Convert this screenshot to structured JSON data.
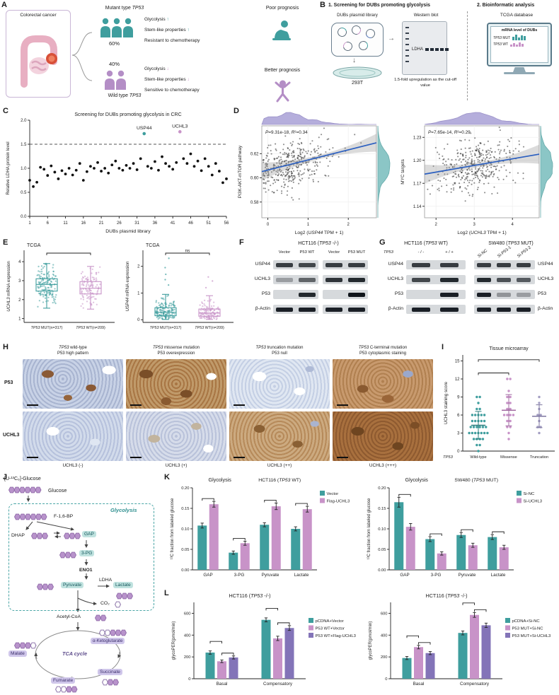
{
  "colors": {
    "teal": "#3f9e9e",
    "pink": "#c893c8",
    "purple": "#8374b8",
    "gray": "#a39ec2",
    "purple_density": "#a9a0d6",
    "teal_density": "#7fc0c0"
  },
  "panelA": {
    "label": "A",
    "organ_title": "Colorectal cancer",
    "mutant_title": "Mutant type *TP53*",
    "mutant_pct": "60%",
    "mutant_items": [
      {
        "text": "Glycolysis",
        "arrow": "↑"
      },
      {
        "text": "Stem-like properties",
        "arrow": "↑"
      },
      {
        "text": "Resistant to chemotherapy",
        "arrow": ""
      }
    ],
    "mutant_outcome": "Poor prognosis",
    "wild_title": "Wild type *TP53*",
    "wild_pct": "40%",
    "wild_items": [
      {
        "text": "Glycolysis",
        "arrow": "↓"
      },
      {
        "text": "Stem-like properties",
        "arrow": "↓"
      },
      {
        "text": "Sensitive to chemotherapy",
        "arrow": ""
      }
    ],
    "wild_outcome": "Better prognosis"
  },
  "panelB": {
    "label": "B",
    "step1": "1. Screening for DUBs promoting glycolysis",
    "step2": "2. Bioinformatic analysis",
    "library_label": "DUBs plasmid library",
    "wb_label": "Western blot",
    "ldha": "LDHA",
    "cell_line": "293T",
    "cutoff": "1.5-fold upregulation as the cut-off value",
    "tcga": "TCGA database",
    "screen_title": "mRNA level of DUBs",
    "mut_label": "*TP53* MUT",
    "wt_label": "*TP53* WT"
  },
  "panelC": {
    "label": "C"
  },
  "panelD": {
    "label": "D"
  },
  "panelE": {
    "label": "E"
  },
  "panelF": {
    "label": "F",
    "title": "HCT116 (*TP53* -/-)",
    "lanes": [
      "Vector",
      "P53 WT",
      "Vector",
      "P53 MUT"
    ],
    "rows": [
      {
        "name": "USP44",
        "bands": [
          [
            0.8,
            0.75
          ],
          [
            0.8,
            0.8
          ]
        ]
      },
      {
        "name": "UCHL3",
        "bands": [
          [
            0.3,
            0.6
          ],
          [
            0.85,
            0.9
          ]
        ]
      },
      {
        "name": "P53",
        "bands": [
          [
            0,
            0.9
          ],
          [
            0,
            1
          ]
        ]
      },
      {
        "name": "β-Actin",
        "bands": [
          [
            0.95,
            0.95
          ],
          [
            0.95,
            0.95
          ]
        ]
      }
    ]
  },
  "panelG": {
    "label": "G",
    "left": {
      "title": "HCT116 (*TP53* WT)",
      "header_gene": "TP53",
      "lanes": [
        "- / -",
        "+ / +"
      ],
      "rows": [
        {
          "name": "USP44",
          "bands": [
            [
              0.8,
              0.8
            ]
          ]
        },
        {
          "name": "UCHL3",
          "bands": [
            [
              0.75,
              0.9
            ]
          ]
        },
        {
          "name": "P53",
          "bands": [
            [
              0.05,
              0.95
            ]
          ]
        },
        {
          "name": "β-Actin",
          "bands": [
            [
              0.95,
              0.95
            ]
          ]
        }
      ]
    },
    "right": {
      "title": "SW480 (*TP53* MUT)",
      "lanes": [
        "Si-NC",
        "Si-P53-1",
        "Si-P53-2"
      ],
      "rows": [
        {
          "name": "USP44",
          "bands": [
            [
              0.8,
              0.8,
              0.8
            ]
          ]
        },
        {
          "name": "UCHL3",
          "bands": [
            [
              0.9,
              0.7,
              0.65
            ]
          ]
        },
        {
          "name": "P53",
          "bands": [
            [
              0.95,
              0.35,
              0.3
            ]
          ]
        },
        {
          "name": "β-Actin",
          "bands": [
            [
              0.95,
              0.95,
              0.95
            ]
          ]
        }
      ]
    }
  },
  "panelH": {
    "label": "H",
    "columns": [
      {
        "line1": "*TP53* wild-type",
        "line2": "P53 high pattern",
        "bottom": "UCHL3 (-)"
      },
      {
        "line1": "*TP53* missense mutation",
        "line2": "P53 overexpression",
        "bottom": "UCHL3 (+)"
      },
      {
        "line1": "*TP53* truncation mutation",
        "line2": "P53 null",
        "bottom": "UCHL3 (++)"
      },
      {
        "line1": "*TP53* C-terminal mutation",
        "line2": "P53 cytoplasmic staining",
        "bottom": "UCHL3 (+++)"
      }
    ],
    "row_labels": [
      "P53",
      "UCHL3"
    ]
  },
  "panelI": {
    "label": "I"
  },
  "panelJ": {
    "label": "J",
    "tracer": "[U-¹³C₆]-Glucose",
    "nodes": {
      "glucose": "Glucose",
      "f16bp": "F-1,6-BP",
      "dhap": "DHAP",
      "gap": "GAP",
      "pg3": "3-PG",
      "eno1": "ENO1",
      "pyruvate": "Pyruvate",
      "ldha": "LDHA",
      "lactate": "Lactate",
      "co2": "CO₂",
      "acetylcoa": "Acetyl-CoA",
      "akg": "α-Ketoglutarate",
      "succinate": "Succinate",
      "fumarate": "Fumarate",
      "malate": "Malate",
      "tca": "TCA cycle",
      "glycolysis": "Glycolysis"
    },
    "chains": {
      "glucose": "ffffff",
      "f16bp": "ffffff",
      "dhap": "fff",
      "gap": "fff",
      "pg3": "fff",
      "pyruvate": "fff",
      "lactate": "fff",
      "co2": "o",
      "acetyl": "ff",
      "akg": "oofff",
      "succinate": "off",
      "fumarate": "ooff",
      "malate": "fffo"
    }
  },
  "panelK": {
    "label": "K"
  },
  "panelL": {
    "label": "L"
  },
  "chart_data": [
    {
      "id": "chart-c",
      "type": "scatter",
      "title": "Screening for DUBs promoting glycolysis in CRC",
      "xlabel": "DUBs plasmid library",
      "ylabel": "Relative LDHA protein level",
      "xticks": [
        1,
        6,
        11,
        16,
        21,
        26,
        31,
        36,
        41,
        46,
        51,
        56
      ],
      "ylim": [
        0,
        2
      ],
      "yticks": [
        0,
        0.5,
        1,
        1.5,
        2
      ],
      "ydec": 1,
      "cutoff": 1.5,
      "values": [
        0.75,
        0.62,
        0.71,
        1.02,
        0.98,
        0.85,
        1.05,
        0.92,
        0.78,
        0.95,
        0.88,
        1.0,
        0.86,
        0.96,
        1.1,
        0.75,
        0.93,
        1.04,
        1.0,
        1.12,
        0.94,
        1.0,
        0.9,
        1.07,
        1.15,
        1.0,
        0.96,
        1.06,
        1.0,
        1.1,
        0.97,
        1.2,
        1.72,
        1.04,
        1.0,
        1.14,
        0.96,
        1.24,
        1.1,
        1.04,
        0.98,
        1.12,
        1.76,
        1.2,
        1.1,
        1.3,
        1.04,
        1.15,
        0.95,
        1.2,
        1.04,
        0.86,
        1.1,
        0.94,
        0.7,
        0.78
      ],
      "highlights": [
        {
          "index": 33,
          "name": "USP44",
          "color": "teal"
        },
        {
          "index": 43,
          "name": "UCHL3",
          "color": "pink"
        }
      ]
    },
    {
      "id": "chart-d1",
      "type": "scatter-density",
      "annotation": "*P*=9.31e-18, *R*²=0.34",
      "ylabel": "PI3K-AKT-mTOR pathway",
      "xlabel": "Log2 (*USP44* TPM + 1)",
      "xlim": [
        -0.15,
        2.7
      ],
      "xticks": [
        0,
        1,
        2
      ],
      "xdec": 0,
      "ylim": [
        1.134,
        1.245
      ],
      "ylim_note": "",
      "ylim2": [
        0.567,
        0.643
      ],
      "yticks": [
        0.58,
        0.6,
        0.62
      ],
      "ydec": 2,
      "n": 380,
      "seed": 7,
      "x_mean": 0.55,
      "x_sd": 0.5,
      "trend": {
        "x0": -0.15,
        "y0": 0.6052,
        "x1": 2.7,
        "y1": 0.629
      },
      "noise": 0.0095
    },
    {
      "id": "chart-d2",
      "type": "scatter-density",
      "annotation": "*P*=7.65e-14, *R*²=0.29",
      "ylabel": "MYC targets",
      "xlabel": "Log2 (*UCHL3* TPM + 1)",
      "xlim": [
        1.7,
        4.7
      ],
      "xticks": [
        2,
        3,
        4
      ],
      "xdec": 0,
      "ylim2": [
        1.125,
        1.245
      ],
      "yticks": [
        1.14,
        1.17,
        1.2,
        1.23
      ],
      "ydec": 2,
      "n": 380,
      "seed": 13,
      "x_mean": 3.0,
      "x_sd": 0.5,
      "trend": {
        "x0": 1.7,
        "y0": 1.182,
        "x1": 4.7,
        "y1": 1.208
      },
      "noise": 0.016
    },
    {
      "id": "chart-e1",
      "type": "box",
      "title": "TCGA",
      "ylabel": "*UCHL3* mRNA expression",
      "ylim": [
        0.8,
        4.6
      ],
      "yticks": [
        1,
        2,
        3,
        4
      ],
      "ydec": 0,
      "sig": "**",
      "groups": [
        {
          "label": "*TP53* MUT(n=317)",
          "color": "teal",
          "ec": "#2a7d7d",
          "n": 150,
          "seed": 21,
          "med": 2.8,
          "q1": 2.45,
          "q3": 3.1,
          "lo": 1.55,
          "hi": 3.9,
          "outliers": []
        },
        {
          "label": "*TP53* WT(n=209)",
          "color": "pink",
          "ec": "#a06aa0",
          "n": 110,
          "seed": 22,
          "med": 2.6,
          "q1": 2.3,
          "q3": 2.95,
          "lo": 1.5,
          "hi": 3.75,
          "outliers": []
        }
      ]
    },
    {
      "id": "chart-e2",
      "type": "box",
      "title": "TCGA",
      "ylabel": "*USP44* mRNA expression",
      "ylim": [
        -0.1,
        2.6
      ],
      "yticks": [
        0,
        1,
        2
      ],
      "ydec": 0,
      "sig": "ns",
      "groups": [
        {
          "label": "*TP53* MUT(n=317)",
          "color": "teal",
          "ec": "#2a7d7d",
          "n": 150,
          "seed": 31,
          "med": 0.28,
          "q1": 0.15,
          "q3": 0.45,
          "lo": 0.01,
          "hi": 0.95,
          "outliers": [
            1.3,
            1.5,
            1.7,
            1.95,
            2.3
          ]
        },
        {
          "label": "*TP53* WT(n=209)",
          "color": "pink",
          "ec": "#a06aa0",
          "n": 110,
          "seed": 32,
          "med": 0.25,
          "q1": 0.13,
          "q3": 0.4,
          "lo": 0.01,
          "hi": 0.9,
          "outliers": [
            1.2,
            1.45,
            1.6
          ]
        }
      ]
    },
    {
      "id": "chart-i",
      "type": "dot",
      "title": "Tissue microarray",
      "ylabel": "UCHL3 staining score",
      "xlabel_gene": "*TP53*",
      "ylim": [
        0,
        16
      ],
      "yticks": [
        0,
        3,
        6,
        9,
        12,
        15
      ],
      "ydec": 0,
      "groups": [
        {
          "label": "Wild-type",
          "color": "teal",
          "ec": "#2a7d7d",
          "values": [
            0,
            1,
            1,
            2,
            2,
            2,
            2,
            3,
            3,
            3,
            3,
            3,
            3,
            3,
            4,
            4,
            4,
            4,
            4,
            4,
            5,
            5,
            5,
            5,
            5,
            6,
            6,
            6,
            6,
            6,
            7,
            7,
            8,
            9,
            9
          ],
          "mean": 4.3,
          "sd_lo": 2.0,
          "sd_hi": 6.6
        },
        {
          "label": "Missense",
          "color": "pink",
          "ec": "#a06aa0",
          "values": [
            2,
            3,
            4,
            4,
            5,
            5,
            6,
            6,
            6,
            6,
            7,
            7,
            8,
            8,
            9,
            9,
            10,
            12,
            12
          ],
          "mean": 6.8,
          "sd_lo": 4.2,
          "sd_hi": 9.4
        },
        {
          "label": "Truncation",
          "color": "gray",
          "ec": "#7d76a0",
          "values": [
            3,
            4,
            4,
            5,
            6,
            6,
            7,
            8,
            9
          ],
          "mean": 5.8,
          "sd_lo": 3.9,
          "sd_hi": 7.7
        }
      ],
      "sig": [
        {
          "a": 0,
          "b": 1,
          "label": "**",
          "y": 13
        },
        {
          "a": 0,
          "b": 2,
          "label": "*",
          "y": 15.2
        }
      ]
    },
    {
      "id": "chart-k1",
      "type": "bar",
      "title": "Glycolysis",
      "subtitle": "HCT116 (*TP53* WT)",
      "ylabel": "¹³C fraction from labeled glucose",
      "ylim": [
        0,
        0.2
      ],
      "yticks": [
        0,
        0.05,
        0.1,
        0.15,
        0.2
      ],
      "ydec": 2,
      "categories": [
        "GAP",
        "3-PG",
        "Pyruvate",
        "Lactate"
      ],
      "series": [
        {
          "name": "Vector",
          "color": "teal",
          "values": [
            0.108,
            0.042,
            0.11,
            0.1
          ],
          "errors": [
            0.006,
            0.004,
            0.005,
            0.005
          ]
        },
        {
          "name": "Flag-UCHL3",
          "color": "pink",
          "values": [
            0.16,
            0.065,
            0.155,
            0.148
          ],
          "errors": [
            0.007,
            0.005,
            0.008,
            0.007
          ]
        }
      ],
      "sig": [
        {
          "cat": 0,
          "a": 0,
          "b": 1,
          "label": "***"
        },
        {
          "cat": 1,
          "a": 0,
          "b": 1,
          "label": "**"
        },
        {
          "cat": 2,
          "a": 0,
          "b": 1,
          "label": "***"
        },
        {
          "cat": 3,
          "a": 0,
          "b": 1,
          "label": "***"
        }
      ]
    },
    {
      "id": "chart-k2",
      "type": "bar",
      "title": "Glycolysis",
      "subtitle": "SW480 (*TP53* MUT)",
      "ylabel": "¹³C fraction from labeled glucose",
      "ylim": [
        0,
        0.2
      ],
      "yticks": [
        0,
        0.05,
        0.1,
        0.15,
        0.2
      ],
      "ydec": 2,
      "categories": [
        "GAP",
        "3-PG",
        "Pyruvate",
        "Lactate"
      ],
      "series": [
        {
          "name": "Si-NC",
          "color": "teal",
          "values": [
            0.165,
            0.075,
            0.085,
            0.08
          ],
          "errors": [
            0.012,
            0.006,
            0.006,
            0.006
          ]
        },
        {
          "name": "Si-UCHL3",
          "color": "pink",
          "values": [
            0.105,
            0.04,
            0.06,
            0.055
          ],
          "errors": [
            0.008,
            0.004,
            0.005,
            0.005
          ]
        }
      ],
      "sig": [
        {
          "cat": 0,
          "a": 0,
          "b": 1,
          "label": "**"
        },
        {
          "cat": 1,
          "a": 0,
          "b": 1,
          "label": "**"
        },
        {
          "cat": 2,
          "a": 0,
          "b": 1,
          "label": "**"
        },
        {
          "cat": 3,
          "a": 0,
          "b": 1,
          "label": "**"
        }
      ]
    },
    {
      "id": "chart-l1",
      "type": "bar",
      "title": "HCT116 (*TP53* -/-)",
      "ylabel": "glycoPER(pmol/min)",
      "ylim": [
        0,
        700
      ],
      "yticks": [
        0,
        200,
        400,
        600
      ],
      "ydec": 0,
      "legy": 40,
      "categories": [
        "Basal",
        "Compensatory"
      ],
      "series": [
        {
          "name": "pCDNA+Vector",
          "color": "teal",
          "values": [
            240,
            540
          ],
          "errors": [
            15,
            18
          ]
        },
        {
          "name": "P53 WT+Vector",
          "color": "pink",
          "values": [
            160,
            370
          ],
          "errors": [
            12,
            20
          ]
        },
        {
          "name": "P53 WT+Flag-UCHL3",
          "color": "purple",
          "values": [
            195,
            465
          ],
          "errors": [
            14,
            22
          ]
        }
      ],
      "sig": [
        {
          "cat": 0,
          "a": 0,
          "b": 1,
          "label": "***",
          "level": 1
        },
        {
          "cat": 0,
          "a": 1,
          "b": 2,
          "label": "*",
          "level": 0
        },
        {
          "cat": 1,
          "a": 0,
          "b": 1,
          "label": "****",
          "level": 1
        },
        {
          "cat": 1,
          "a": 1,
          "b": 2,
          "label": "****",
          "level": 0
        }
      ]
    },
    {
      "id": "chart-l2",
      "type": "bar",
      "title": "HCT116 (*TP53* -/-)",
      "ylabel": "glycoPER(pmol/min)",
      "ylim": [
        0,
        700
      ],
      "yticks": [
        0,
        200,
        400,
        600
      ],
      "ydec": 0,
      "legy": 40,
      "categories": [
        "Basal",
        "Compensatory"
      ],
      "series": [
        {
          "name": "pCDNA+Si-NC",
          "color": "teal",
          "values": [
            190,
            420
          ],
          "errors": [
            14,
            18
          ]
        },
        {
          "name": "P53 MUT+Si-NC",
          "color": "pink",
          "values": [
            290,
            585
          ],
          "errors": [
            16,
            22
          ]
        },
        {
          "name": "P53 MUT+Si-UCHL3",
          "color": "purple",
          "values": [
            235,
            490
          ],
          "errors": [
            14,
            20
          ]
        }
      ],
      "sig": [
        {
          "cat": 0,
          "a": 0,
          "b": 1,
          "label": "****",
          "level": 1
        },
        {
          "cat": 0,
          "a": 1,
          "b": 2,
          "label": "***",
          "level": 0
        },
        {
          "cat": 1,
          "a": 0,
          "b": 1,
          "label": "****",
          "level": 1
        },
        {
          "cat": 1,
          "a": 1,
          "b": 2,
          "label": "**",
          "level": 0
        }
      ]
    }
  ]
}
